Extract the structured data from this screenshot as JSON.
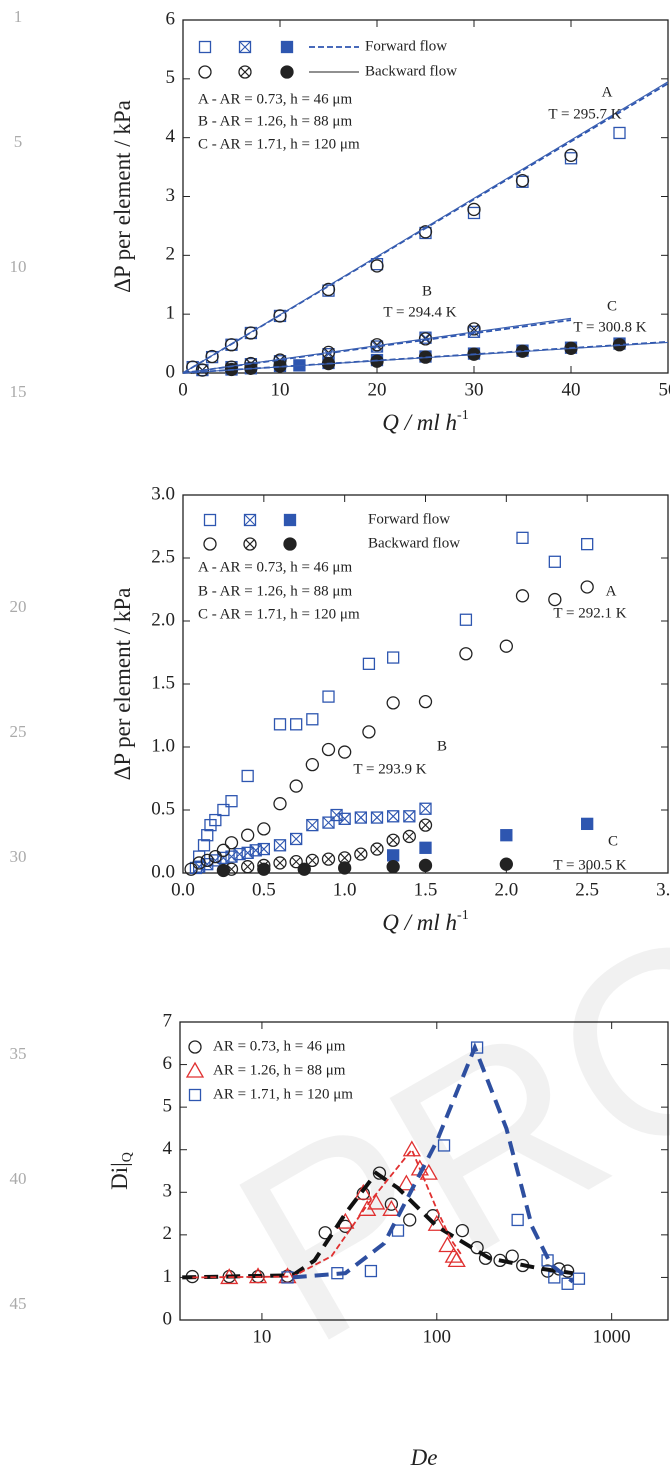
{
  "line_numbers": [
    "1",
    "5",
    "10",
    "15",
    "20",
    "25",
    "30",
    "35",
    "40",
    "45"
  ],
  "watermark": "PRO",
  "chart_data": [
    {
      "type": "scatter",
      "y_label": "ΔP per element / kPa",
      "x_label": "Q / ml h",
      "x_label_sup": "-1",
      "xlim": [
        0,
        50
      ],
      "ylim": [
        0,
        6
      ],
      "xticks": [
        0,
        10,
        20,
        30,
        40,
        50
      ],
      "yticks": [
        0,
        1,
        2,
        3,
        4,
        5,
        6
      ],
      "conditions": [
        "A - AR = 0.73, h = 46 μm",
        "B - AR = 1.26, h = 88 μm",
        "C - AR = 1.71, h = 120 μm"
      ],
      "annotations": [
        "A",
        "T = 295.7 K",
        "B",
        "T = 294.4 K",
        "C",
        "T = 300.8 K"
      ],
      "series": [
        {
          "name": "Forward flow",
          "marker": "open-square",
          "color": "#2e56b0",
          "x": [
            1,
            3,
            5,
            7,
            10,
            15,
            20,
            25,
            30,
            35,
            40,
            45
          ],
          "values": [
            0.1,
            0.27,
            0.48,
            0.68,
            0.97,
            1.4,
            1.85,
            2.38,
            2.72,
            3.25,
            3.65,
            4.08
          ]
        },
        {
          "name": "Forward flow",
          "marker": "crossed-square",
          "color": "#2e56b0",
          "x": [
            2,
            5,
            7,
            10,
            15,
            20,
            25,
            30
          ],
          "values": [
            0.05,
            0.1,
            0.15,
            0.2,
            0.32,
            0.45,
            0.6,
            0.7
          ]
        },
        {
          "name": "Forward flow",
          "marker": "filled-square",
          "color": "#2e56b0",
          "x": [
            5,
            7,
            10,
            12,
            15,
            20,
            25,
            30,
            35,
            40,
            45
          ],
          "values": [
            0.06,
            0.08,
            0.12,
            0.13,
            0.17,
            0.22,
            0.28,
            0.33,
            0.38,
            0.43,
            0.5
          ]
        },
        {
          "name": "Backward flow",
          "marker": "open-circle",
          "color": "#222222",
          "x": [
            1,
            3,
            5,
            7,
            10,
            15,
            20,
            25,
            30,
            35,
            40
          ],
          "values": [
            0.1,
            0.28,
            0.48,
            0.68,
            0.97,
            1.42,
            1.82,
            2.4,
            2.78,
            3.27,
            3.7
          ]
        },
        {
          "name": "Backward flow",
          "marker": "crossed-circle",
          "color": "#222222",
          "x": [
            2,
            5,
            7,
            10,
            15,
            20,
            25,
            30
          ],
          "values": [
            0.05,
            0.1,
            0.16,
            0.22,
            0.35,
            0.48,
            0.58,
            0.75
          ]
        },
        {
          "name": "Backward flow",
          "marker": "filled-circle",
          "color": "#222222",
          "x": [
            5,
            7,
            10,
            15,
            20,
            25,
            30,
            35,
            40,
            45
          ],
          "values": [
            0.06,
            0.08,
            0.12,
            0.16,
            0.2,
            0.27,
            0.32,
            0.37,
            0.42,
            0.48
          ]
        },
        {
          "name": "Forward flow",
          "marker": "line",
          "style": "dashed",
          "color": "#2e56b0",
          "x": [
            0,
            50
          ],
          "values": [
            0,
            4.92
          ]
        },
        {
          "name": "Backward flow",
          "marker": "line",
          "style": "solid",
          "color": "#3a5fb0",
          "x": [
            0,
            50
          ],
          "values": [
            0,
            4.95
          ]
        },
        {
          "name": "Forward flow",
          "marker": "line",
          "style": "dashed",
          "color": "#2e56b0",
          "x": [
            0,
            40
          ],
          "values": [
            0,
            0.9
          ]
        },
        {
          "name": "Backward flow",
          "marker": "line",
          "style": "solid",
          "color": "#3a5fb0",
          "x": [
            0,
            40
          ],
          "values": [
            0,
            0.93
          ]
        },
        {
          "name": "Forward flow",
          "marker": "line",
          "style": "dashed",
          "color": "#2e56b0",
          "x": [
            0,
            50
          ],
          "values": [
            0,
            0.53
          ]
        },
        {
          "name": "Backward flow",
          "marker": "line",
          "style": "solid",
          "color": "#3a5fb0",
          "x": [
            0,
            50
          ],
          "values": [
            0,
            0.52
          ]
        }
      ]
    },
    {
      "type": "scatter",
      "y_label": "ΔP per element / kPa",
      "x_label": "Q / ml h",
      "x_label_sup": "-1",
      "xlim": [
        0,
        3
      ],
      "ylim": [
        0,
        3
      ],
      "xticks": [
        {
          "value": 0,
          "label": "0.0"
        },
        0.5,
        {
          "value": 1,
          "label": "1.0"
        },
        1.5,
        {
          "value": 2,
          "label": "2.0"
        },
        2.5,
        {
          "value": 3,
          "label": "3.0"
        }
      ],
      "yticks": [
        {
          "value": 0,
          "label": "0.0"
        },
        0.5,
        {
          "value": 1,
          "label": "1.0"
        },
        1.5,
        {
          "value": 2,
          "label": "2.0"
        },
        2.5,
        {
          "value": 3,
          "label": "3.0"
        }
      ],
      "conditions": [
        "A - AR = 0.73, h = 46 μm",
        "B - AR = 1.26, h = 88 μm",
        "C - AR = 1.71, h = 120 μm"
      ],
      "annotations": [
        "A",
        "T = 292.1 K",
        "B",
        "T = 293.9 K",
        "C",
        "T = 300.5 K"
      ],
      "series": [
        {
          "name": "Forward flow",
          "marker": "open-square",
          "color": "#2e56b0",
          "x": [
            0.08,
            0.1,
            0.13,
            0.15,
            0.17,
            0.2,
            0.25,
            0.3,
            0.4,
            0.6,
            0.7,
            0.8,
            0.9,
            1.15,
            1.3,
            1.75,
            2.1,
            2.3,
            2.5
          ],
          "values": [
            0.04,
            0.13,
            0.22,
            0.3,
            0.38,
            0.42,
            0.5,
            0.57,
            0.77,
            1.18,
            1.18,
            1.22,
            1.4,
            1.66,
            1.71,
            2.01,
            2.66,
            2.47,
            2.61
          ]
        },
        {
          "name": "Forward flow",
          "marker": "crossed-square",
          "color": "#2e56b0",
          "x": [
            0.1,
            0.15,
            0.2,
            0.25,
            0.3,
            0.35,
            0.4,
            0.45,
            0.5,
            0.6,
            0.7,
            0.8,
            0.9,
            0.95,
            1,
            1.1,
            1.2,
            1.3,
            1.4,
            1.5
          ],
          "values": [
            0.05,
            0.07,
            0.1,
            0.12,
            0.13,
            0.15,
            0.16,
            0.18,
            0.19,
            0.22,
            0.27,
            0.38,
            0.4,
            0.46,
            0.43,
            0.44,
            0.44,
            0.45,
            0.45,
            0.51
          ]
        },
        {
          "name": "Forward flow",
          "marker": "filled-square",
          "color": "#2e56b0",
          "x": [
            1.3,
            1.5,
            2,
            2.5
          ],
          "values": [
            0.14,
            0.2,
            0.3,
            0.39
          ]
        },
        {
          "name": "Backward flow",
          "marker": "open-circle",
          "color": "#222222",
          "x": [
            0.05,
            0.1,
            0.15,
            0.2,
            0.25,
            0.3,
            0.4,
            0.5,
            0.6,
            0.7,
            0.8,
            0.9,
            1,
            1.15,
            1.3,
            1.5,
            1.75,
            2,
            2.1,
            2.3,
            2.5
          ],
          "values": [
            0.03,
            0.08,
            0.1,
            0.13,
            0.18,
            0.24,
            0.3,
            0.35,
            0.55,
            0.69,
            0.86,
            0.98,
            0.96,
            1.12,
            1.35,
            1.36,
            1.74,
            1.8,
            2.2,
            2.17,
            2.27
          ]
        },
        {
          "name": "Backward flow",
          "marker": "crossed-circle",
          "color": "#222222",
          "x": [
            0.3,
            0.4,
            0.5,
            0.6,
            0.7,
            0.8,
            0.9,
            1,
            1.1,
            1.2,
            1.3,
            1.4,
            1.5
          ],
          "values": [
            0.03,
            0.05,
            0.06,
            0.08,
            0.09,
            0.1,
            0.11,
            0.12,
            0.15,
            0.19,
            0.26,
            0.29,
            0.38
          ]
        },
        {
          "name": "Backward flow",
          "marker": "filled-circle",
          "color": "#222222",
          "x": [
            0.25,
            0.5,
            0.75,
            1,
            1.3,
            1.5,
            2
          ],
          "values": [
            0.02,
            0.03,
            0.03,
            0.04,
            0.05,
            0.06,
            0.07
          ]
        }
      ]
    },
    {
      "type": "scatter",
      "y_label": "Di|",
      "y_label_sub": "Q",
      "x_label": "De",
      "log_x": true,
      "xlim": [
        3.4,
        2100
      ],
      "ylim": [
        0,
        7
      ],
      "xticks": [
        10,
        100,
        1000
      ],
      "yticks": [
        0,
        1,
        2,
        3,
        4,
        5,
        6,
        7
      ],
      "series": [
        {
          "name": "AR = 0.73, h = 46 μm",
          "marker": "open-circle",
          "color": "#222222",
          "x": [
            4,
            6.5,
            9.5,
            14,
            23,
            30,
            38,
            47,
            55,
            70,
            95,
            140,
            170,
            190,
            230,
            270,
            310,
            430,
            500,
            560
          ],
          "values": [
            1.02,
            1.02,
            1.02,
            1.03,
            2.05,
            2.2,
            2.97,
            3.45,
            2.72,
            2.35,
            2.45,
            2.1,
            1.7,
            1.45,
            1.4,
            1.5,
            1.28,
            1.15,
            1.2,
            1.15
          ]
        },
        {
          "name": "AR = 1.26, h = 88 μm",
          "marker": "open-triangle",
          "color": "#e03030",
          "x": [
            6.5,
            9.5,
            14,
            30,
            38,
            40,
            45,
            55,
            67,
            72,
            80,
            90,
            100,
            115,
            125,
            130
          ],
          "values": [
            1,
            1.02,
            1.02,
            2.3,
            2.98,
            2.6,
            2.75,
            2.6,
            3.2,
            4,
            3.55,
            3.45,
            2.25,
            1.75,
            1.5,
            1.4
          ]
        },
        {
          "name": "AR = 1.71, h = 120 μm",
          "marker": "open-square",
          "color": "#2e56b0",
          "x": [
            14,
            27,
            42,
            60,
            110,
            170,
            290,
            430,
            470,
            560,
            650
          ],
          "values": [
            1,
            1.1,
            1.15,
            2.1,
            4.1,
            6.4,
            2.35,
            1.4,
            1,
            0.85,
            0.97
          ]
        },
        {
          "marker": "line",
          "style": "bold-dashed",
          "color": "#111111",
          "x": [
            3.5,
            15,
            20,
            30,
            45,
            60,
            100,
            200,
            400,
            600
          ],
          "values": [
            1,
            1.05,
            1.4,
            2.5,
            3.45,
            3.1,
            2.2,
            1.45,
            1.2,
            1.1
          ]
        },
        {
          "marker": "line",
          "style": "dashed",
          "color": "#e03030",
          "x": [
            4,
            15,
            25,
            40,
            72,
            100,
            120,
            140
          ],
          "values": [
            1,
            1.02,
            1.5,
            2.7,
            4,
            2.6,
            1.9,
            1.5
          ]
        },
        {
          "marker": "line",
          "style": "bold-dashed",
          "color": "#2e4fa0",
          "x": [
            15,
            30,
            50,
            100,
            165,
            250,
            350,
            450,
            600
          ],
          "values": [
            1,
            1.1,
            1.8,
            4.2,
            6.4,
            4.5,
            2.2,
            1.3,
            0.9
          ]
        }
      ]
    }
  ]
}
